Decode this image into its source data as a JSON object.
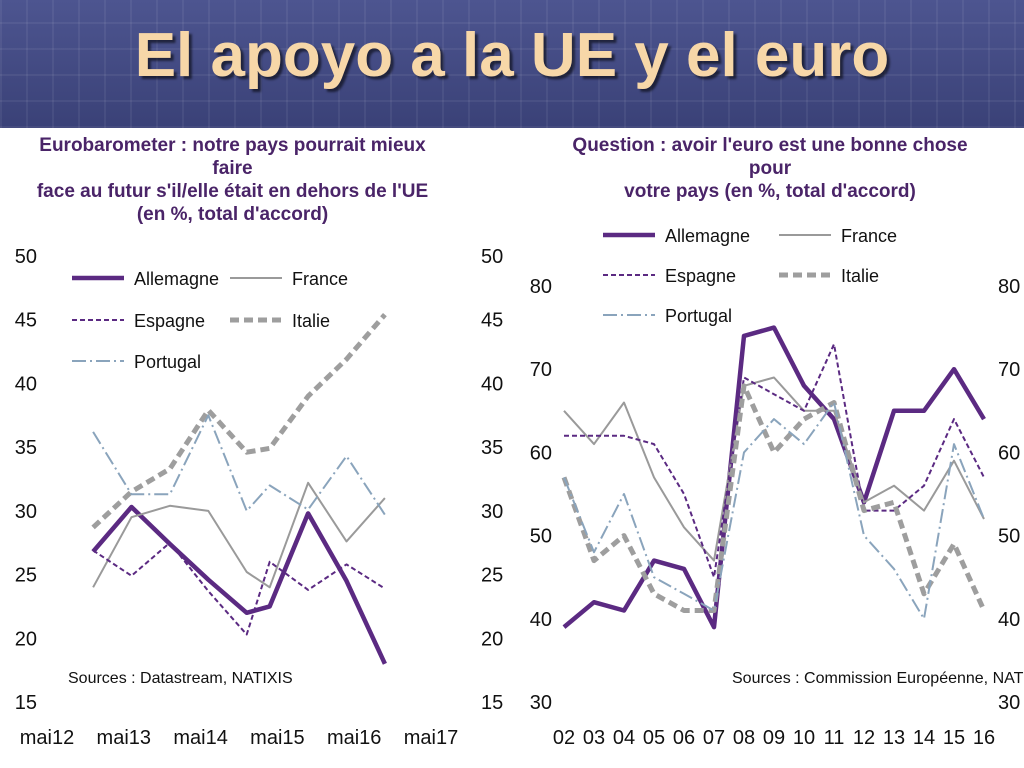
{
  "slide": {
    "title": "El apoyo a la UE y el euro"
  },
  "colors": {
    "allemagne": "#5b2a82",
    "espagne": "#5b2a82",
    "france": "#9a9a9a",
    "italie": "#9e9e9e",
    "portugal": "#8aa4bc",
    "title": "#4a2468",
    "header_bg": "#434a84",
    "slide_title": "#f7d7a8"
  },
  "chart_data": [
    {
      "type": "line",
      "title_lines": [
        "Eurobarometer  : notre pays pourrait mieux faire",
        "face au futur s'il/elle était en dehors de l'UE",
        "(en %, total d'accord)"
      ],
      "x_ticks": [
        "mai12",
        "mai13",
        "mai14",
        "mai15",
        "mai16",
        "mai17"
      ],
      "ylim": [
        15,
        50
      ],
      "y_ticks": [
        15,
        20,
        25,
        30,
        35,
        40,
        45,
        50
      ],
      "x": [
        2012.6,
        2013.1,
        2013.6,
        2014.1,
        2014.6,
        2014.9,
        2015.4,
        2015.9,
        2016.4
      ],
      "xlim": [
        2012,
        2017.9
      ],
      "source": "Sources : Datastream, NATIXIS",
      "series": [
        {
          "name": "Allemagne",
          "values": [
            26.8,
            30.3,
            27.4,
            24.6,
            22.0,
            22.5,
            29.8,
            24.5,
            18.0
          ]
        },
        {
          "name": "France",
          "values": [
            24.0,
            29.5,
            30.4,
            30.0,
            25.2,
            24.0,
            32.2,
            27.6,
            31.0
          ]
        },
        {
          "name": "Espagne",
          "values": [
            26.9,
            24.9,
            27.5,
            23.7,
            20.3,
            26.0,
            23.8,
            25.8,
            23.9
          ]
        },
        {
          "name": "Italie",
          "values": [
            28.7,
            31.5,
            33.3,
            37.9,
            34.6,
            34.9,
            39.0,
            41.9,
            45.4
          ]
        },
        {
          "name": "Portugal",
          "values": [
            36.2,
            31.3,
            31.3,
            37.5,
            30.0,
            32.0,
            30.1,
            34.3,
            29.7
          ]
        }
      ]
    },
    {
      "type": "line",
      "title_lines": [
        "Question : avoir l'euro est une bonne chose pour",
        "votre pays (en %, total d'accord)"
      ],
      "categories": [
        "02",
        "03",
        "04",
        "05",
        "06",
        "07",
        "08",
        "09",
        "10",
        "11",
        "12",
        "13",
        "14",
        "15",
        "16"
      ],
      "ylim": [
        30,
        80
      ],
      "y_ticks": [
        30,
        40,
        50,
        60,
        70,
        80
      ],
      "source": "Sources : Commission Européenne, NATIXIS",
      "series": [
        {
          "name": "Allemagne",
          "values": [
            39,
            42,
            41,
            47,
            46,
            39,
            74,
            75,
            68,
            64,
            54,
            65,
            65,
            70,
            64
          ]
        },
        {
          "name": "France",
          "values": [
            65,
            61,
            66,
            57,
            51,
            47,
            68,
            69,
            65,
            65,
            54,
            56,
            53,
            59,
            52
          ]
        },
        {
          "name": "Espagne",
          "values": [
            62,
            62,
            62,
            61,
            55,
            45,
            69,
            67,
            65,
            73,
            53,
            53,
            56,
            64,
            57
          ]
        },
        {
          "name": "Italie",
          "values": [
            57,
            47,
            50,
            43,
            41,
            41,
            68,
            60,
            64,
            66,
            53,
            54,
            43,
            49,
            41
          ]
        },
        {
          "name": "Portugal",
          "values": [
            57,
            48,
            55,
            45,
            43,
            41,
            60,
            64,
            61,
            66,
            50,
            46,
            40,
            61,
            52
          ]
        }
      ]
    }
  ]
}
